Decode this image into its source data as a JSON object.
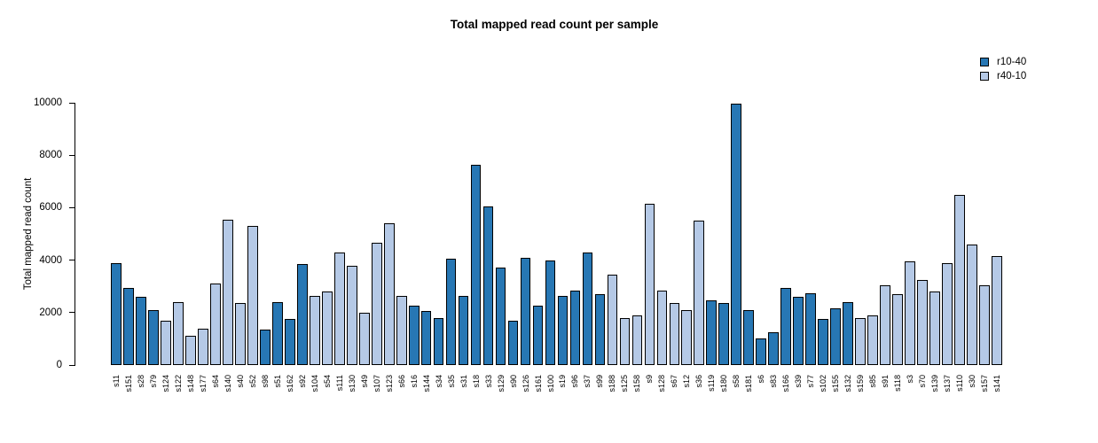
{
  "chart_data": {
    "type": "bar",
    "title": "Total mapped read count per sample",
    "ylabel": "Total mapped read count",
    "xlabel": "",
    "ylim": [
      0,
      10000
    ],
    "yticks": [
      0,
      2000,
      4000,
      6000,
      8000,
      10000
    ],
    "grid": false,
    "legend_position": "top-right",
    "legend_entries": [
      "r10-40",
      "r40-10"
    ],
    "series_colors": {
      "r10-40": "#2777b4",
      "r40-10": "#b5c9e6"
    },
    "bar_border_color": "#000000",
    "samples": [
      {
        "label": "s11",
        "series": "r10-40",
        "value": 3900
      },
      {
        "label": "s151",
        "series": "r10-40",
        "value": 2950
      },
      {
        "label": "s28",
        "series": "r10-40",
        "value": 2600
      },
      {
        "label": "s79",
        "series": "r10-40",
        "value": 2100
      },
      {
        "label": "s124",
        "series": "r40-10",
        "value": 1700
      },
      {
        "label": "s122",
        "series": "r40-10",
        "value": 2400
      },
      {
        "label": "s148",
        "series": "r40-10",
        "value": 1100
      },
      {
        "label": "s177",
        "series": "r40-10",
        "value": 1400
      },
      {
        "label": "s64",
        "series": "r40-10",
        "value": 3100
      },
      {
        "label": "s140",
        "series": "r40-10",
        "value": 5550
      },
      {
        "label": "s40",
        "series": "r40-10",
        "value": 2350
      },
      {
        "label": "s52",
        "series": "r40-10",
        "value": 5300
      },
      {
        "label": "s98",
        "series": "r10-40",
        "value": 1350
      },
      {
        "label": "s51",
        "series": "r10-40",
        "value": 2400
      },
      {
        "label": "s162",
        "series": "r10-40",
        "value": 1750
      },
      {
        "label": "s92",
        "series": "r10-40",
        "value": 3850
      },
      {
        "label": "s104",
        "series": "r40-10",
        "value": 2650
      },
      {
        "label": "s54",
        "series": "r40-10",
        "value": 2800
      },
      {
        "label": "s111",
        "series": "r40-10",
        "value": 4300
      },
      {
        "label": "s130",
        "series": "r40-10",
        "value": 3800
      },
      {
        "label": "s49",
        "series": "r40-10",
        "value": 2000
      },
      {
        "label": "s107",
        "series": "r40-10",
        "value": 4650
      },
      {
        "label": "s123",
        "series": "r40-10",
        "value": 5400
      },
      {
        "label": "s66",
        "series": "r40-10",
        "value": 2650
      },
      {
        "label": "s16",
        "series": "r10-40",
        "value": 2250
      },
      {
        "label": "s144",
        "series": "r10-40",
        "value": 2050
      },
      {
        "label": "s34",
        "series": "r10-40",
        "value": 1800
      },
      {
        "label": "s35",
        "series": "r10-40",
        "value": 4050
      },
      {
        "label": "s31",
        "series": "r10-40",
        "value": 2650
      },
      {
        "label": "s18",
        "series": "r10-40",
        "value": 7650
      },
      {
        "label": "s33",
        "series": "r10-40",
        "value": 6050
      },
      {
        "label": "s129",
        "series": "r10-40",
        "value": 3700
      },
      {
        "label": "s90",
        "series": "r10-40",
        "value": 1700
      },
      {
        "label": "s126",
        "series": "r10-40",
        "value": 4100
      },
      {
        "label": "s161",
        "series": "r10-40",
        "value": 2250
      },
      {
        "label": "s100",
        "series": "r10-40",
        "value": 4000
      },
      {
        "label": "s19",
        "series": "r10-40",
        "value": 2650
      },
      {
        "label": "s96",
        "series": "r10-40",
        "value": 2850
      },
      {
        "label": "s37",
        "series": "r10-40",
        "value": 4300
      },
      {
        "label": "s99",
        "series": "r10-40",
        "value": 2700
      },
      {
        "label": "s188",
        "series": "r40-10",
        "value": 3450
      },
      {
        "label": "s125",
        "series": "r40-10",
        "value": 1800
      },
      {
        "label": "s158",
        "series": "r40-10",
        "value": 1900
      },
      {
        "label": "s9",
        "series": "r40-10",
        "value": 6150
      },
      {
        "label": "s128",
        "series": "r40-10",
        "value": 2850
      },
      {
        "label": "s67",
        "series": "r40-10",
        "value": 2350
      },
      {
        "label": "s12",
        "series": "r40-10",
        "value": 2100
      },
      {
        "label": "s36",
        "series": "r40-10",
        "value": 5500
      },
      {
        "label": "s119",
        "series": "r10-40",
        "value": 2450
      },
      {
        "label": "s180",
        "series": "r10-40",
        "value": 2350
      },
      {
        "label": "s58",
        "series": "r10-40",
        "value": 9950
      },
      {
        "label": "s181",
        "series": "r10-40",
        "value": 2100
      },
      {
        "label": "s6",
        "series": "r10-40",
        "value": 1000
      },
      {
        "label": "s83",
        "series": "r10-40",
        "value": 1250
      },
      {
        "label": "s166",
        "series": "r10-40",
        "value": 2950
      },
      {
        "label": "s39",
        "series": "r10-40",
        "value": 2600
      },
      {
        "label": "s77",
        "series": "r10-40",
        "value": 2750
      },
      {
        "label": "s102",
        "series": "r10-40",
        "value": 1750
      },
      {
        "label": "s155",
        "series": "r10-40",
        "value": 2150
      },
      {
        "label": "s132",
        "series": "r10-40",
        "value": 2400
      },
      {
        "label": "s159",
        "series": "r40-10",
        "value": 1800
      },
      {
        "label": "s85",
        "series": "r40-10",
        "value": 1900
      },
      {
        "label": "s91",
        "series": "r40-10",
        "value": 3050
      },
      {
        "label": "s118",
        "series": "r40-10",
        "value": 2700
      },
      {
        "label": "s3",
        "series": "r40-10",
        "value": 3950
      },
      {
        "label": "s70",
        "series": "r40-10",
        "value": 3250
      },
      {
        "label": "s139",
        "series": "r40-10",
        "value": 2800
      },
      {
        "label": "s137",
        "series": "r40-10",
        "value": 3900
      },
      {
        "label": "s110",
        "series": "r40-10",
        "value": 6500
      },
      {
        "label": "s30",
        "series": "r40-10",
        "value": 4600
      },
      {
        "label": "s157",
        "series": "r40-10",
        "value": 3050
      },
      {
        "label": "s141",
        "series": "r40-10",
        "value": 4150
      }
    ]
  }
}
